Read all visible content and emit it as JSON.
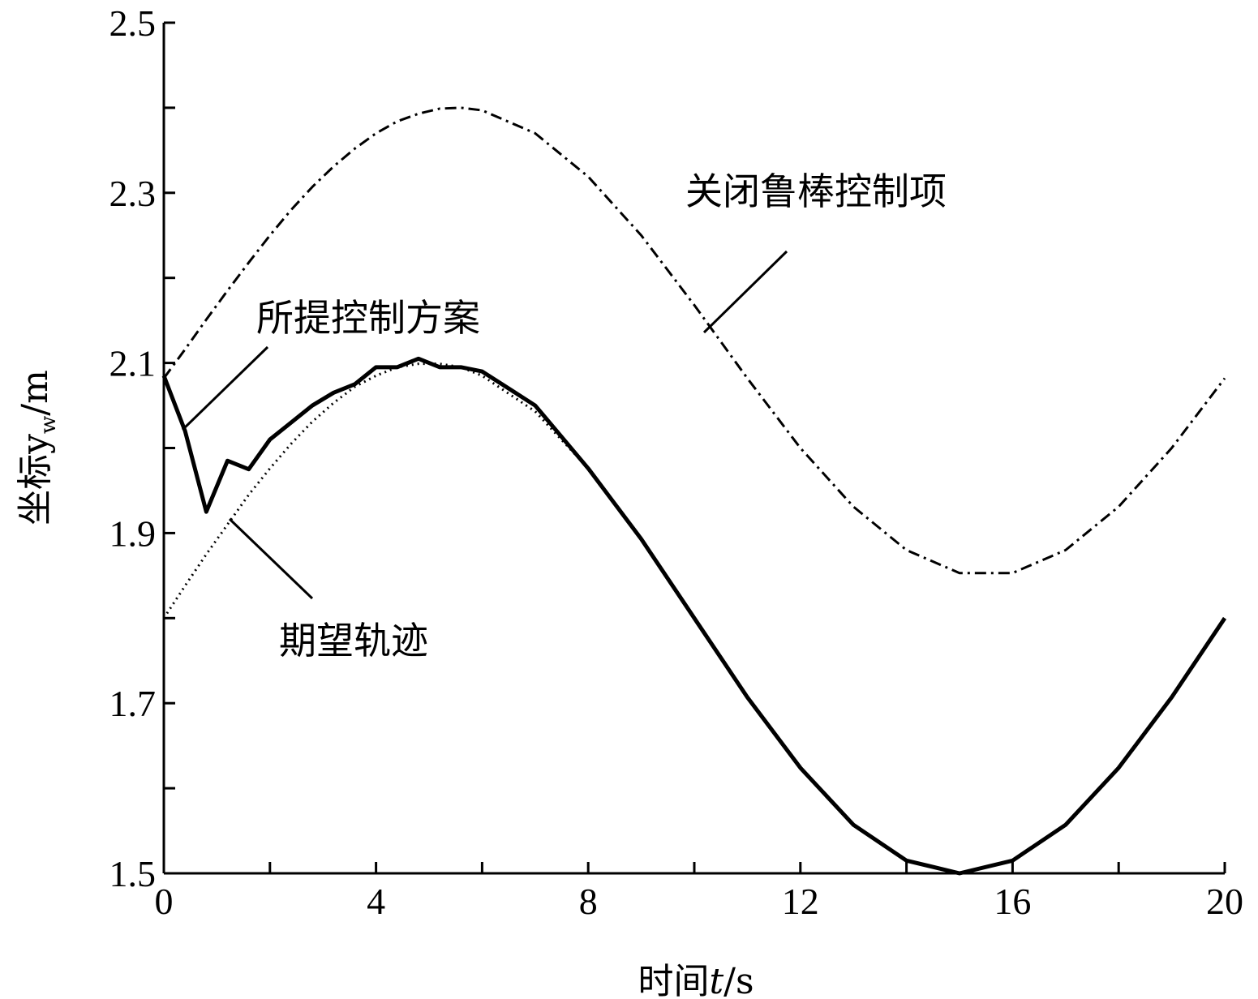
{
  "chart_data": {
    "type": "line",
    "xlabel": {
      "prefix": "时间",
      "var": "t",
      "suffix": "/s"
    },
    "ylabel": {
      "prefix": "坐标y",
      "sub": "w",
      "suffix": "/m"
    },
    "xlim": [
      0,
      20
    ],
    "xticks": [
      0,
      4,
      8,
      12,
      16,
      20
    ],
    "xminorticks": [
      2,
      6,
      10,
      14,
      18
    ],
    "ylim": [
      1.5,
      2.5
    ],
    "yticks": [
      1.5,
      1.7,
      1.9,
      2.1,
      2.3,
      2.5
    ],
    "yminorticks": [
      1.6,
      1.8,
      2.0,
      2.2,
      2.4
    ],
    "x": [
      0,
      0.4,
      0.8,
      1.2,
      1.6,
      2,
      2.4,
      2.8,
      3.2,
      3.6,
      4,
      4.4,
      4.8,
      5.2,
      5.6,
      6,
      7,
      8,
      9,
      10,
      11,
      12,
      13,
      14,
      15,
      16,
      17,
      18,
      19,
      20
    ],
    "series": [
      {
        "name": "所提控制方案",
        "color": "#000000",
        "style": "solid",
        "values": [
          2.085,
          2.02,
          1.925,
          1.985,
          1.975,
          2.01,
          2.03,
          2.05,
          2.065,
          2.075,
          2.095,
          2.095,
          2.105,
          2.095,
          2.095,
          2.09,
          2.05,
          1.976,
          1.893,
          1.8,
          1.707,
          1.624,
          1.557,
          1.515,
          1.5,
          1.515,
          1.557,
          1.624,
          1.707,
          1.8
        ]
      },
      {
        "name": "期望轨迹",
        "color": "#000000",
        "style": "dotted",
        "values": [
          1.8,
          1.838,
          1.875,
          1.91,
          1.945,
          1.976,
          2.005,
          2.031,
          2.053,
          2.072,
          2.085,
          2.095,
          2.099,
          2.099,
          2.095,
          2.085,
          2.043,
          1.976,
          1.893,
          1.8,
          1.707,
          1.624,
          1.557,
          1.515,
          1.5,
          1.515,
          1.557,
          1.624,
          1.707,
          1.8
        ]
      },
      {
        "name": "关闭鲁棒控制项",
        "color": "#000000",
        "style": "dashdot",
        "values": [
          2.082,
          2.116,
          2.151,
          2.185,
          2.218,
          2.25,
          2.28,
          2.307,
          2.331,
          2.352,
          2.37,
          2.384,
          2.393,
          2.399,
          2.4,
          2.397,
          2.37,
          2.319,
          2.25,
          2.168,
          2.082,
          2.0,
          1.931,
          1.88,
          1.853,
          1.853,
          1.88,
          1.931,
          2.0,
          2.082
        ]
      }
    ]
  }
}
